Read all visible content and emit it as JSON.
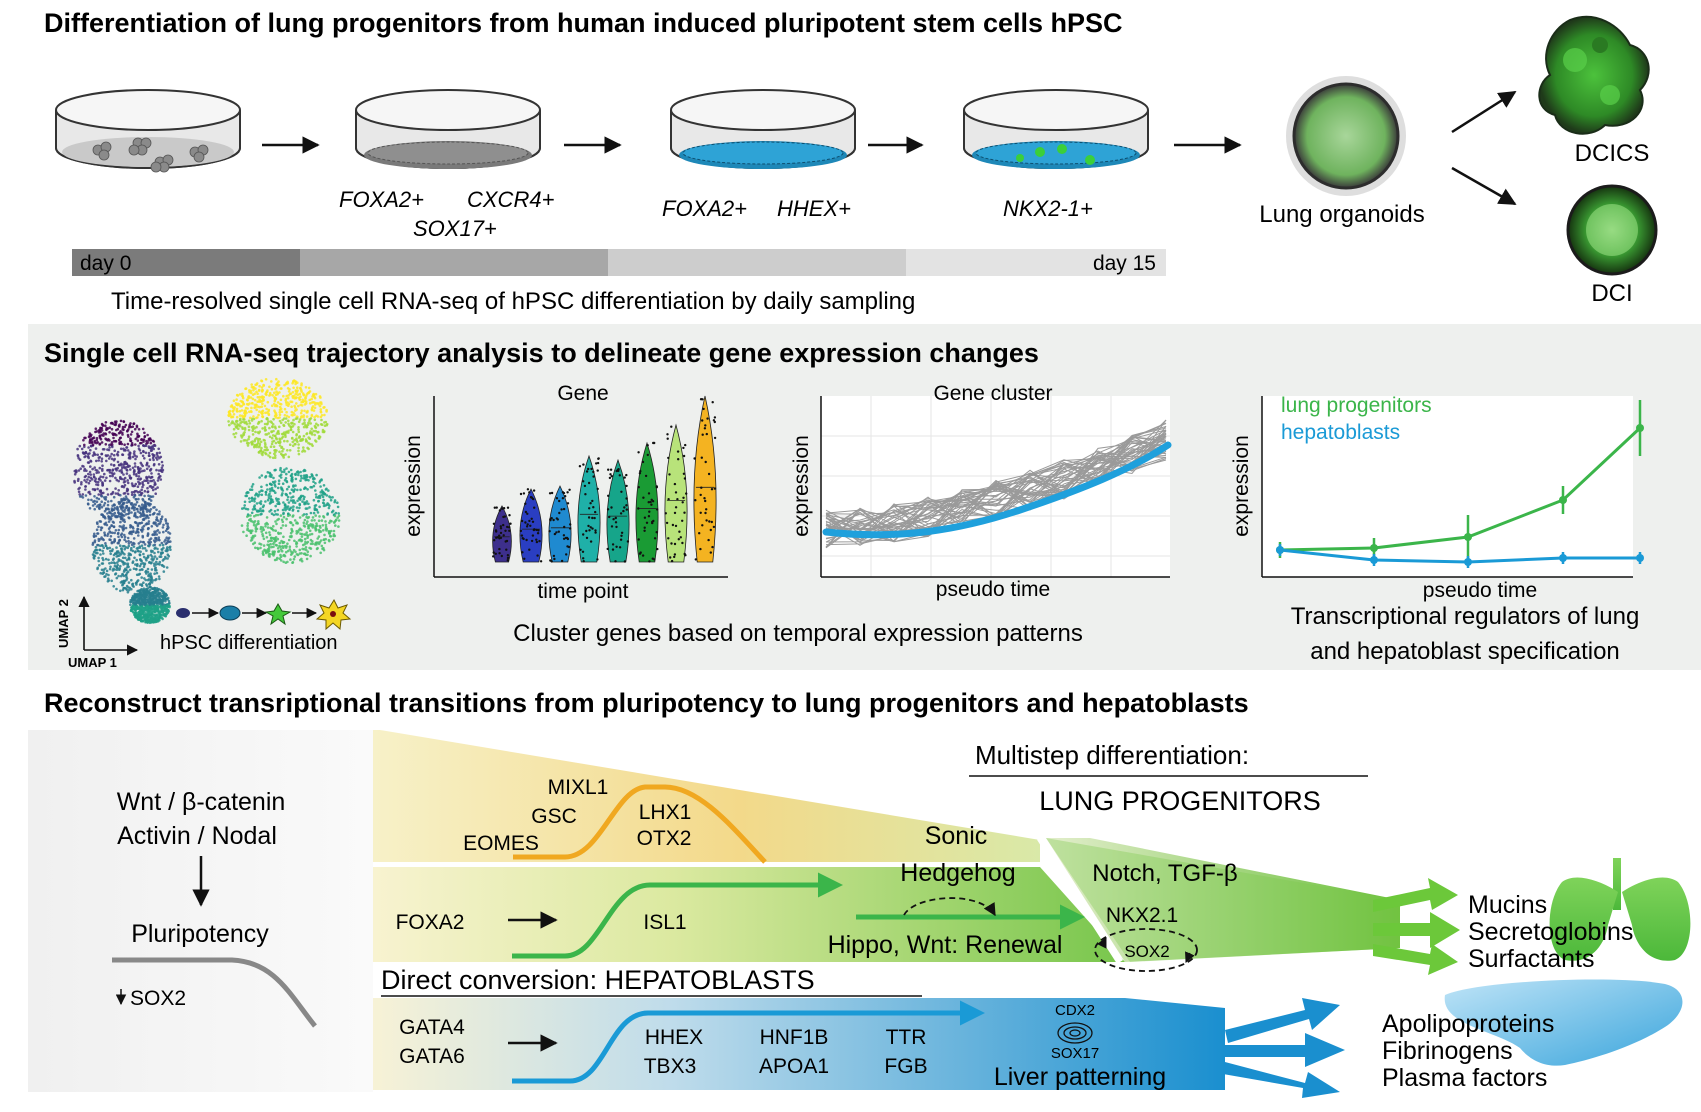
{
  "section1": {
    "title": "Differentiation of lung progenitors from human induced pluripotent stem cells hPSC",
    "markers": {
      "foxa2": "FOXA2+",
      "cxcr4": "CXCR4+",
      "sox17": "SOX17+",
      "foxa2_b": "FOXA2+",
      "hhex": "HHEX+",
      "nkx21": "NKX2-1+"
    },
    "lung_organoids": "Lung organoids",
    "dcics": "DCICS",
    "dci": "DCI",
    "day_start": "day 0",
    "day_end": "day 15",
    "caption": "Time-resolved single cell RNA-seq of hPSC differentiation by daily sampling"
  },
  "section2": {
    "title": "Single cell RNA-seq trajectory analysis to delineate gene expression changes",
    "umap": {
      "axis_x": "UMAP 1",
      "axis_y": "UMAP 2",
      "caption": "hPSC differentiation"
    },
    "gene_panel": {
      "title": "Gene",
      "xlabel": "time point",
      "ylabel": "expression"
    },
    "cluster_panel": {
      "title": "Gene cluster",
      "xlabel": "pseudo time",
      "ylabel": "expression"
    },
    "shared_caption": "Cluster genes based on temporal expression patterns",
    "regulators_panel": {
      "ylabel": "expression",
      "xlabel": "pseudo time",
      "legend_lung": "lung progenitors",
      "legend_hep": "hepatoblasts",
      "caption_line1": "Transcriptional regulators of lung",
      "caption_line2": "and hepatoblast specification"
    }
  },
  "section3": {
    "title": "Reconstruct transriptional transitions from pluripotency to lung progenitors and hepatoblasts",
    "wnt": "Wnt / β-catenin",
    "activin": "Activin / Nodal",
    "pluripotency": "Pluripotency",
    "sox2_down": "SOX2",
    "mixl1": "MIXL1",
    "gsc": "GSC",
    "eomes": "EOMES",
    "lhx1": "LHX1",
    "otx2": "OTX2",
    "foxa2": "FOXA2",
    "isl1": "ISL1",
    "sonic": "Sonic",
    "hedgehog": "Hedgehog",
    "hippo": "Hippo, Wnt: Renewal",
    "multistep": "Multistep differentiation:",
    "lung_progenitors": "LUNG PROGENITORS",
    "notch": "Notch, TGF-β",
    "nkx21": "NKX2.1",
    "sox2": "SOX2",
    "mucins": "Mucins",
    "secretoglobins": "Secretoglobins",
    "surfactants": "Surfactants",
    "direct": "Direct conversion: HEPATOBLASTS",
    "gata4": "GATA4",
    "gata6": "GATA6",
    "hhex": "HHEX",
    "tbx3": "TBX3",
    "hnf1b": "HNF1B",
    "apoa1": "APOA1",
    "ttr": "TTR",
    "fgb": "FGB",
    "cdx2": "CDX2",
    "sox17": "SOX17",
    "liver": "Liver patterning",
    "apolipoproteins": "Apolipoproteins",
    "fibrinogens": "Fibrinogens",
    "plasma": "Plasma factors"
  },
  "colors": {
    "lung_green": "#3bb54a",
    "hep_blue": "#1a9ad6",
    "orange": "#f0a820",
    "panel_bg": "#eef0ee"
  }
}
